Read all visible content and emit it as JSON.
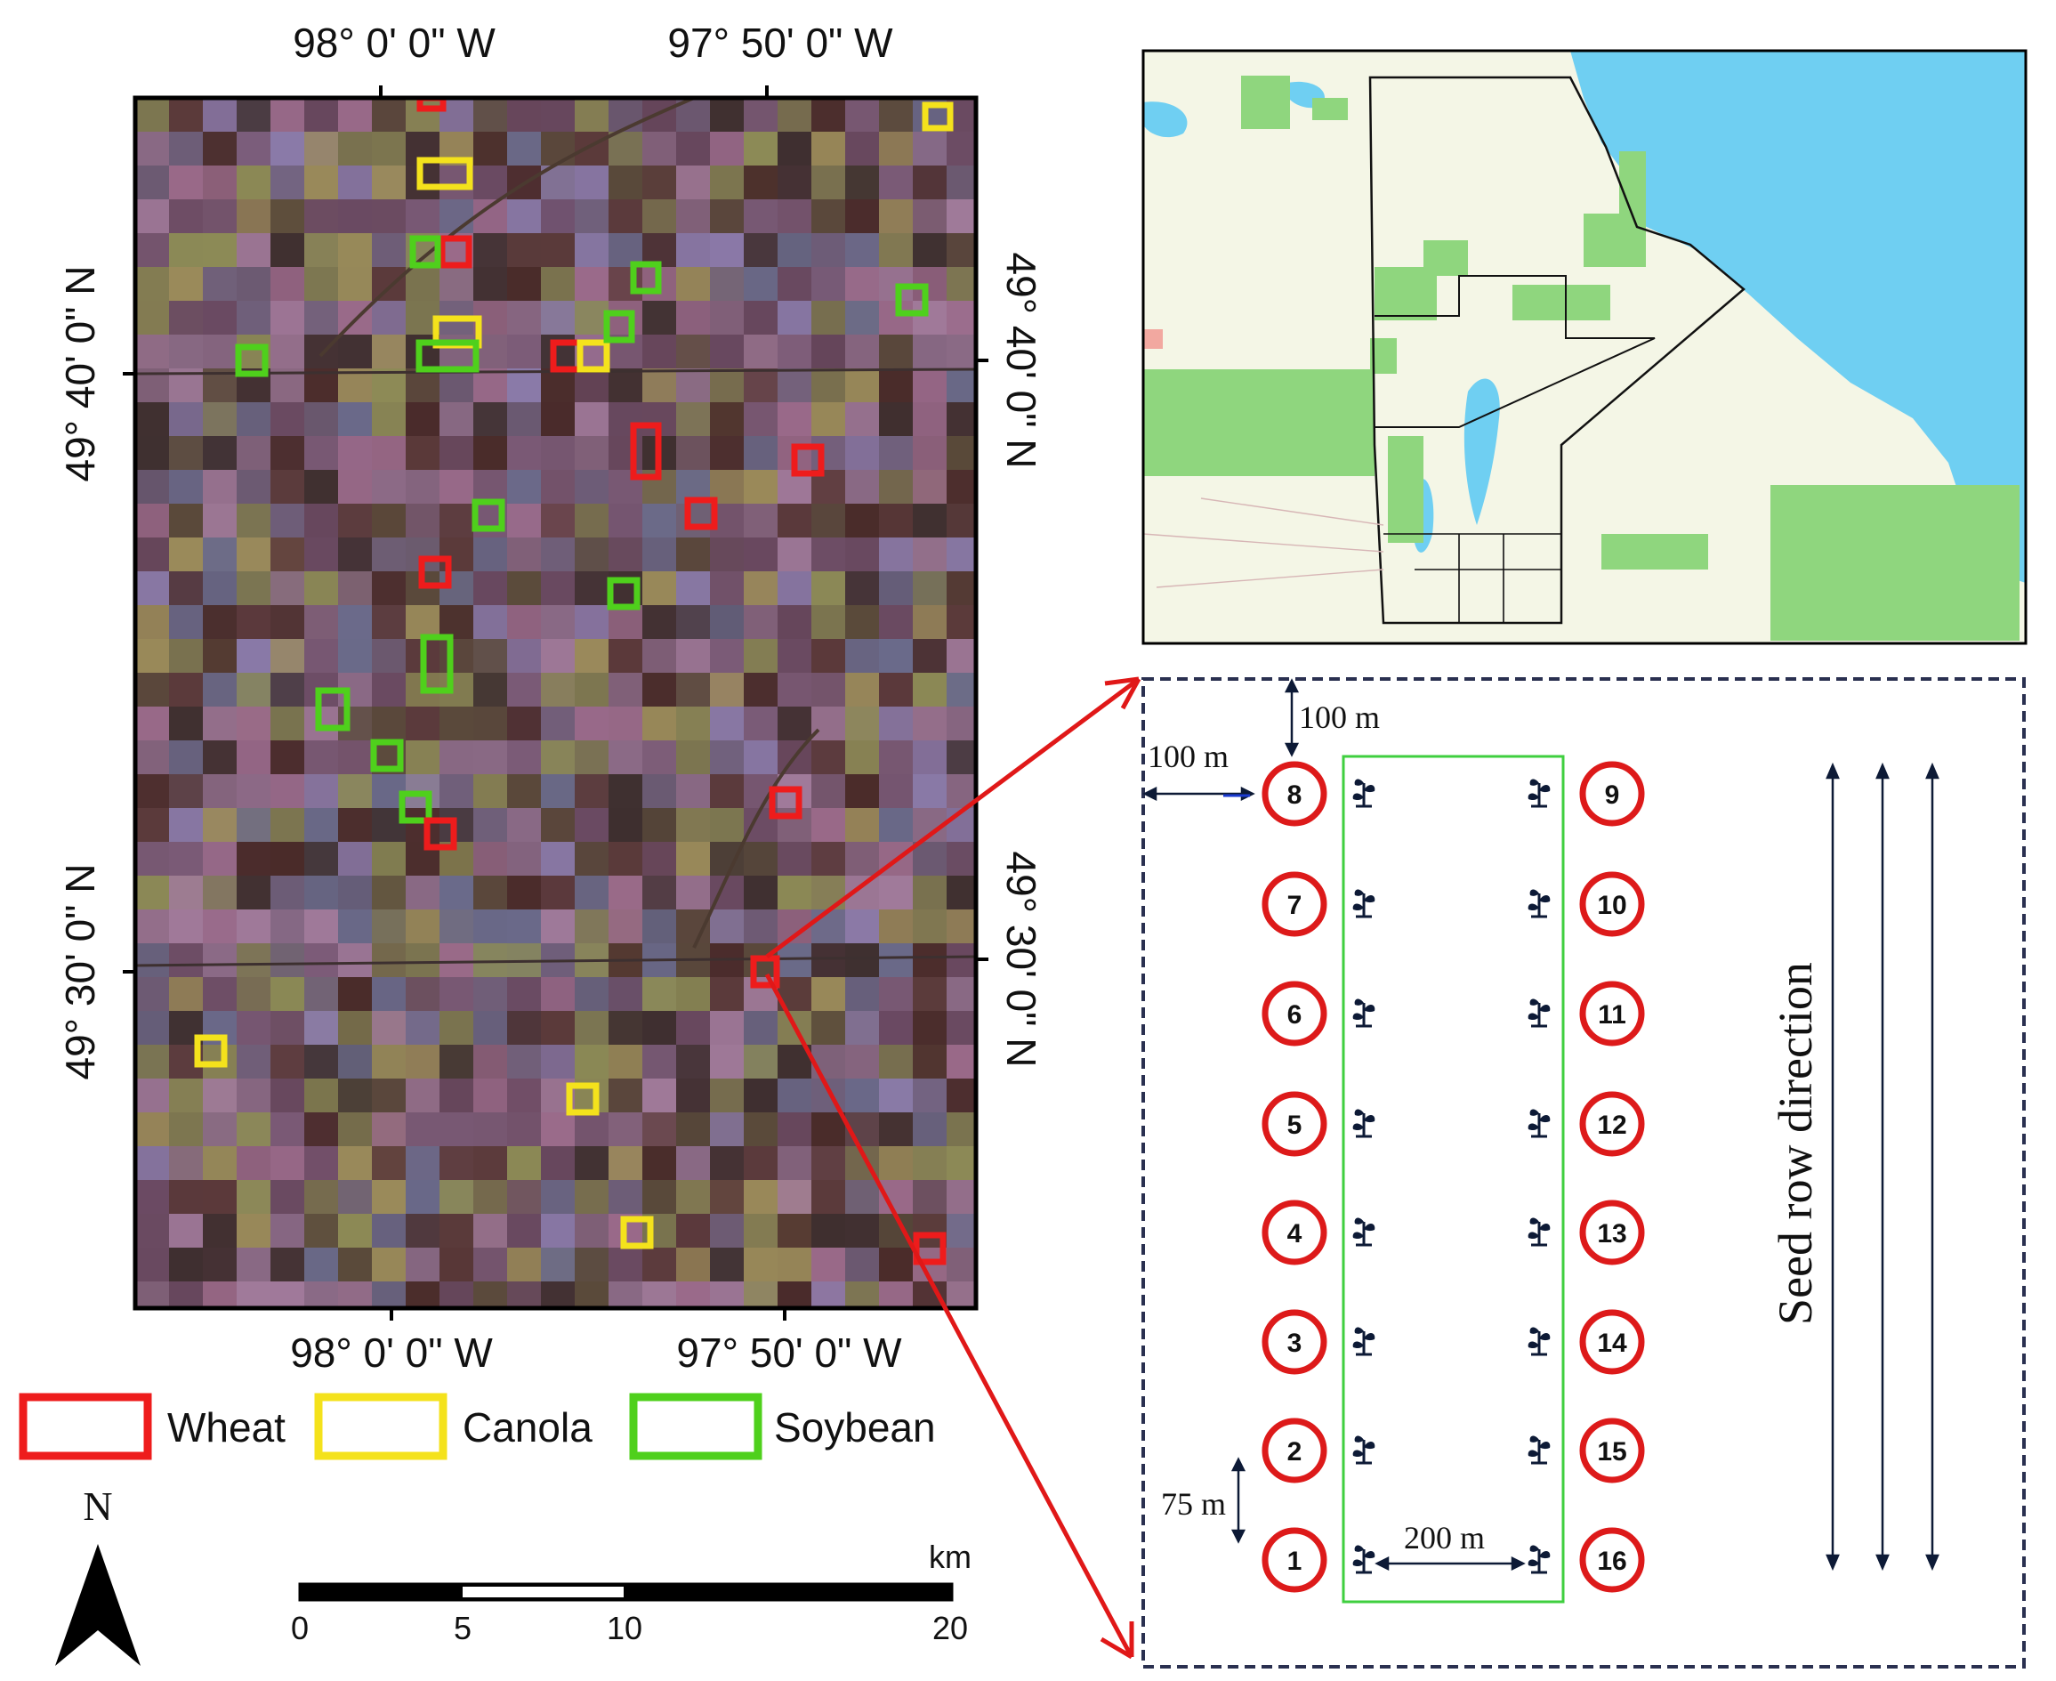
{
  "map": {
    "top_lon_labels": [
      "98° 0' 0\" W",
      "97° 50' 0\" W"
    ],
    "bottom_lon_labels": [
      "98° 0' 0\" W",
      "97° 50' 0\" W"
    ],
    "left_lat_labels": [
      "49° 40' 0\" N",
      "49° 30' 0\" N"
    ],
    "right_lat_labels": [
      "49° 40' 0\" N",
      "49° 30' 0\" N"
    ]
  },
  "legend": {
    "items": [
      {
        "label": "Wheat",
        "color": "#ee1c1c"
      },
      {
        "label": "Canola",
        "color": "#f4e21c"
      },
      {
        "label": "Soybean",
        "color": "#4fd01c"
      }
    ]
  },
  "north_arrow": {
    "label": "N"
  },
  "scale_bar": {
    "unit": "km",
    "ticks": [
      "0",
      "5",
      "10",
      "20"
    ]
  },
  "field_layout": {
    "top_distance": "100 m",
    "left_distance": "100 m",
    "spacing": "75 m",
    "width": "200 m",
    "seed_row_label": "Seed row direction",
    "left_points": [
      "8",
      "7",
      "6",
      "5",
      "4",
      "3",
      "2",
      "1"
    ],
    "right_points": [
      "9",
      "10",
      "11",
      "12",
      "13",
      "14",
      "15",
      "16"
    ]
  },
  "colors": {
    "water": "#6fcff2",
    "land": "#f4f6e6",
    "protected": "#8fd67e",
    "arrow": "#e01818",
    "plot_circle": "#dd1a1a",
    "field_outline": "#3fcf3f",
    "dash_box": "#2a3050"
  }
}
